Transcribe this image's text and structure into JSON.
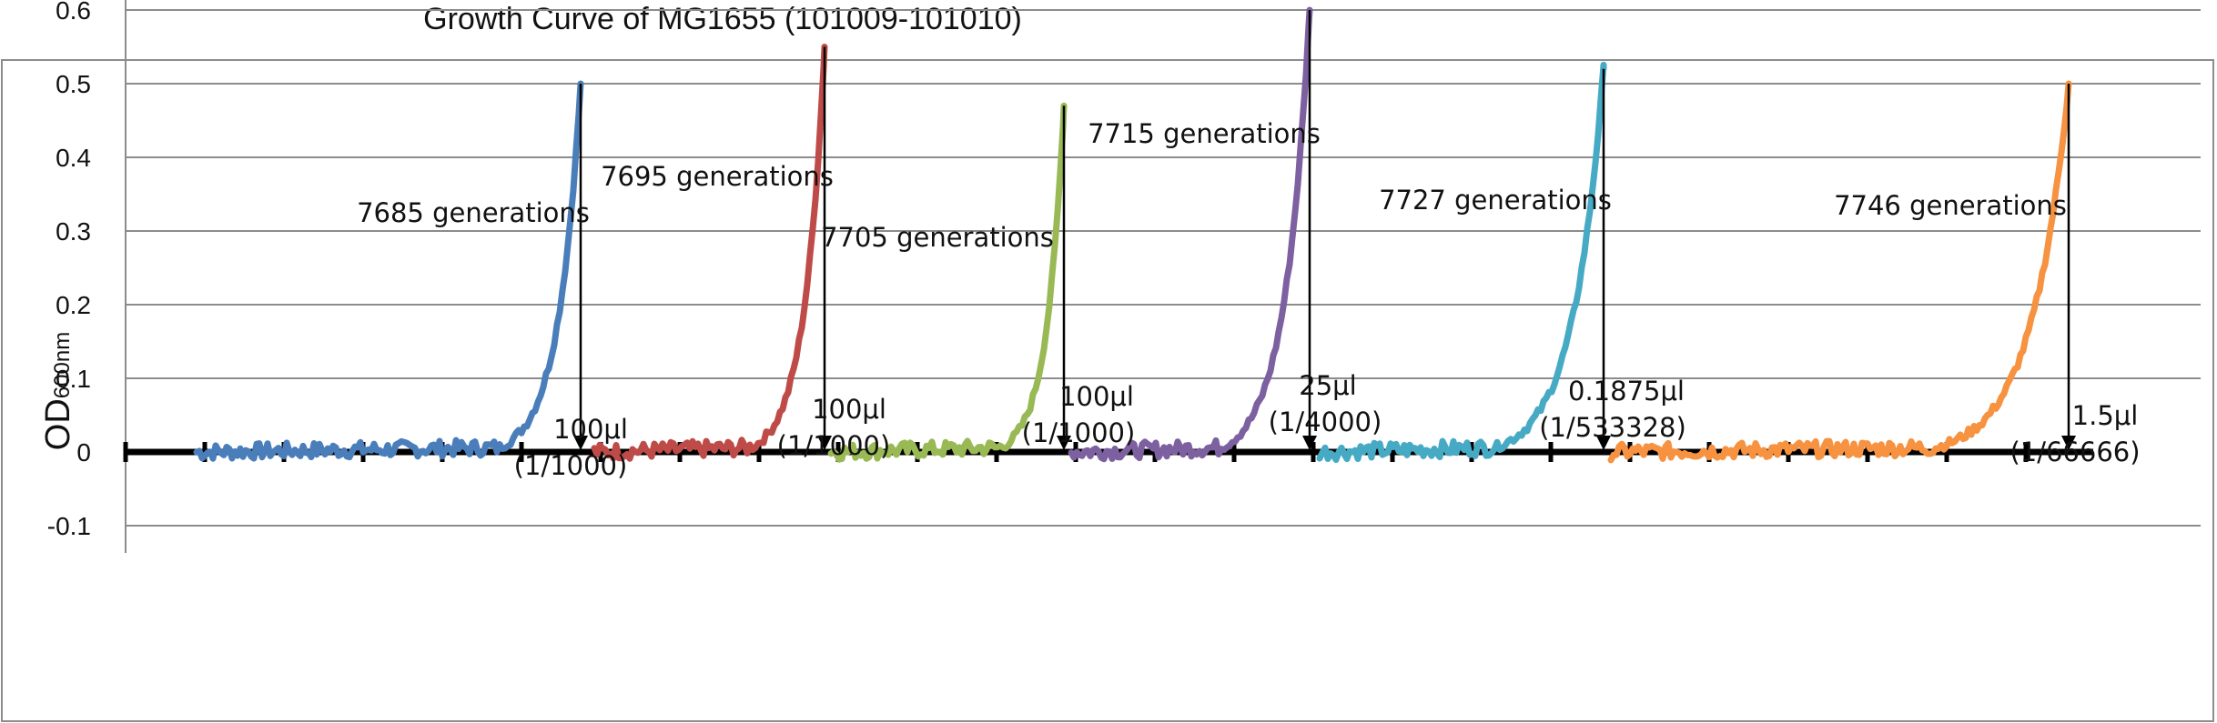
{
  "chart_data": {
    "type": "line",
    "title": "Growth Curve of MG1655 (101009-101010)",
    "ylabel_main": "OD",
    "ylabel_sub": "600nm",
    "xlabel": "",
    "ylim": [
      -0.1,
      0.6
    ],
    "yticks": [
      -0.1,
      0,
      0.1,
      0.2,
      0.3,
      0.4,
      0.5,
      0.6
    ],
    "ytick_labels": [
      "-0.1",
      "0",
      "0.1",
      "0.2",
      "0.3",
      "0.4",
      "0.5",
      "0.6"
    ],
    "grid": true,
    "legend": "none",
    "series": [
      {
        "color": "#4a7ebb",
        "peak": 0.5,
        "label": "7685 generations",
        "transfer_volume": "100μl",
        "dilution": "(1/1000)"
      },
      {
        "color": "#be4b48",
        "peak": 0.55,
        "label": "7695 generations",
        "transfer_volume": "100μl",
        "dilution": "(1/1000)"
      },
      {
        "color": "#98b954",
        "peak": 0.47,
        "label": "7705 generations",
        "transfer_volume": "100μl",
        "dilution": "(1/1000)"
      },
      {
        "color": "#7d60a0",
        "peak": 0.6,
        "label": "7715 generations",
        "transfer_volume": "25μl",
        "dilution": "(1/4000)"
      },
      {
        "color": "#46aac5",
        "peak": 0.52,
        "label": "7727 generations",
        "transfer_volume": "0.1875μl",
        "dilution": "(1/533328)"
      },
      {
        "color": "#f69240",
        "peak": 0.5,
        "label": "7746 generations",
        "transfer_volume": "1.5μl",
        "dilution": "(1/66666)"
      }
    ]
  }
}
